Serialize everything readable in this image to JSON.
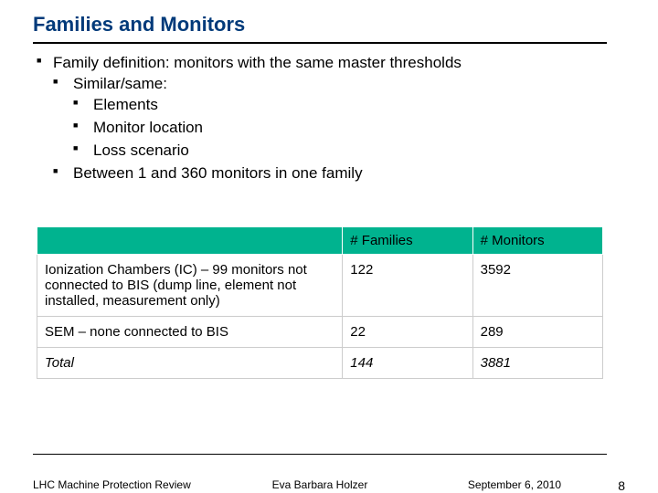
{
  "title": "Families and Monitors",
  "title_color": "#003a7a",
  "bullets": {
    "l1a": "Family definition: monitors with the same master thresholds",
    "l2a": "Similar/same:",
    "l3a": "Elements",
    "l3b": "Monitor location",
    "l3c": "Loss scenario",
    "l2b": "Between 1 and 360 monitors in one family"
  },
  "table": {
    "header_bg": "#00b38f",
    "border_color": "#cccccc",
    "columns": [
      "",
      "# Families",
      "# Monitors"
    ],
    "col_widths_pct": [
      54,
      23,
      23
    ],
    "rows": [
      [
        "Ionization Chambers (IC) – 99 monitors not connected to BIS (dump line, element not installed, measurement only)",
        "122",
        "3592"
      ],
      [
        "SEM – none connected to BIS",
        "22",
        "289"
      ]
    ],
    "total_row": [
      "Total",
      "144",
      "3881"
    ]
  },
  "footer": {
    "left": "LHC Machine Protection Review",
    "center": "Eva Barbara Holzer",
    "right": "September 6, 2010",
    "page": "8"
  }
}
